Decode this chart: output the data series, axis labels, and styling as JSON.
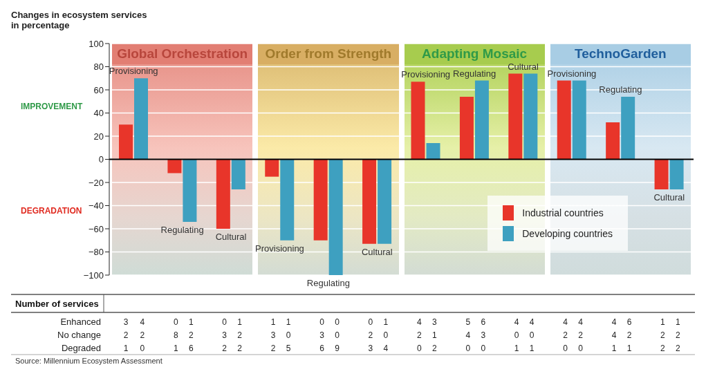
{
  "chart_data": {
    "type": "bar",
    "ylabel": "Changes in ecosystem services in percentage",
    "categories": [
      "Provisioning",
      "Regulating",
      "Cultural",
      "Provisioning",
      "Regulating",
      "Cultural",
      "Provisioning",
      "Regulating",
      "Cultural",
      "Provisioning",
      "Regulating",
      "Cultural"
    ],
    "series": [
      {
        "name": "Industrial countries",
        "color": "#e8352a",
        "values": [
          30,
          -12,
          -60,
          -15,
          -70,
          -73,
          67,
          54,
          74,
          68,
          32,
          -26
        ]
      },
      {
        "name": "Developing countries",
        "color": "#3ea0c0",
        "values": [
          70,
          -54,
          -26,
          -70,
          -100,
          -73,
          14,
          68,
          74,
          68,
          54,
          -26
        ]
      }
    ],
    "ylim": [
      -100,
      100
    ],
    "yticks": [
      {
        "value": -100,
        "label": "−100"
      },
      {
        "value": -80,
        "label": "−80"
      },
      {
        "value": -60,
        "label": "−60"
      },
      {
        "value": -40,
        "label": "−40"
      },
      {
        "value": -20,
        "label": "−20"
      },
      0,
      20,
      40,
      60,
      80,
      100
    ],
    "grid": "y",
    "ref_lines": [
      {
        "axis": "y",
        "value": 0,
        "color": "#000000"
      }
    ],
    "legend": "bottom right",
    "annotations": [
      "Global Orchestration",
      "Order from Strength",
      "Adapting Mosaic",
      "TechnoGarden",
      "IMPROVEMENT",
      "DEGRADATION",
      "Number of services",
      "Enhanced",
      "No change",
      "Degraded",
      "3 4 0 1 0 1 1 1 0 0 0 1 4 3 5 6 4 4 4 4 4 6 1 1",
      "2 2 8 2 3 2 3 0 3 0 2 0 2 1 4 3 0 0 2 2 4 2 2 2",
      "1 0 1 6 2 2 2 5 6 9 3 4 0 2 0 0 1 1 0 0 1 1 2 2",
      "Source: Millennium Ecosystem Assessment"
    ]
  }
}
